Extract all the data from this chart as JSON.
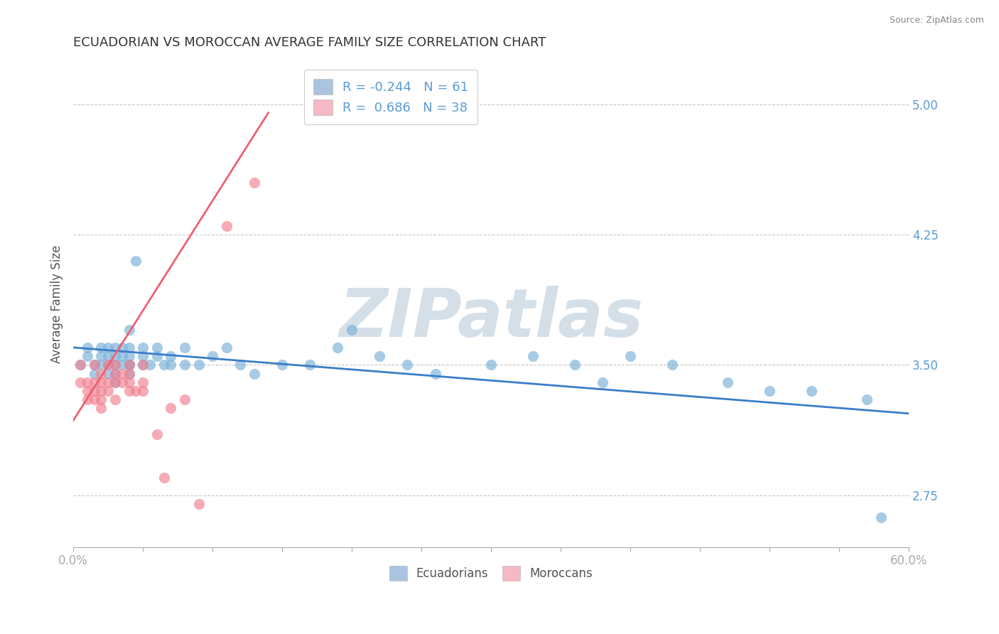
{
  "title": "ECUADORIAN VS MOROCCAN AVERAGE FAMILY SIZE CORRELATION CHART",
  "source_text": "Source: ZipAtlas.com",
  "ylabel": "Average Family Size",
  "right_yticks": [
    2.75,
    3.5,
    4.25,
    5.0
  ],
  "xlim": [
    0.0,
    0.6
  ],
  "ylim": [
    2.45,
    5.25
  ],
  "xtick_positions": [
    0.0,
    0.05,
    0.1,
    0.15,
    0.2,
    0.25,
    0.3,
    0.35,
    0.4,
    0.45,
    0.5,
    0.55,
    0.6
  ],
  "xtick_labels_sparse": {
    "0": "0.0%",
    "12": "60.0%"
  },
  "legend_entries": [
    {
      "label": "R = -0.244   N = 61",
      "color": "#aac4e0"
    },
    {
      "label": "R =  0.686   N = 38",
      "color": "#f5b8c4"
    }
  ],
  "bottom_legend": [
    {
      "label": "Ecuadorians",
      "color": "#7ab0d8"
    },
    {
      "label": "Moroccans",
      "color": "#f08090"
    }
  ],
  "blue_scatter_x": [
    0.005,
    0.01,
    0.01,
    0.015,
    0.015,
    0.02,
    0.02,
    0.02,
    0.025,
    0.025,
    0.025,
    0.025,
    0.03,
    0.03,
    0.03,
    0.03,
    0.03,
    0.035,
    0.035,
    0.035,
    0.04,
    0.04,
    0.04,
    0.04,
    0.04,
    0.04,
    0.045,
    0.05,
    0.05,
    0.05,
    0.055,
    0.06,
    0.06,
    0.065,
    0.07,
    0.07,
    0.08,
    0.08,
    0.09,
    0.1,
    0.11,
    0.12,
    0.13,
    0.15,
    0.17,
    0.19,
    0.2,
    0.22,
    0.24,
    0.26,
    0.3,
    0.33,
    0.36,
    0.38,
    0.4,
    0.43,
    0.47,
    0.5,
    0.53,
    0.57,
    0.58
  ],
  "blue_scatter_y": [
    3.5,
    3.55,
    3.6,
    3.5,
    3.45,
    3.55,
    3.6,
    3.5,
    3.5,
    3.55,
    3.45,
    3.6,
    3.5,
    3.55,
    3.45,
    3.4,
    3.6,
    3.5,
    3.55,
    3.6,
    3.5,
    3.55,
    3.45,
    3.6,
    3.7,
    3.5,
    4.1,
    3.5,
    3.55,
    3.6,
    3.5,
    3.55,
    3.6,
    3.5,
    3.5,
    3.55,
    3.5,
    3.6,
    3.5,
    3.55,
    3.6,
    3.5,
    3.45,
    3.5,
    3.5,
    3.6,
    3.7,
    3.55,
    3.5,
    3.45,
    3.5,
    3.55,
    3.5,
    3.4,
    3.55,
    3.5,
    3.4,
    3.35,
    3.35,
    3.3,
    2.62
  ],
  "pink_scatter_x": [
    0.005,
    0.005,
    0.01,
    0.01,
    0.01,
    0.015,
    0.015,
    0.015,
    0.015,
    0.02,
    0.02,
    0.02,
    0.02,
    0.02,
    0.025,
    0.025,
    0.025,
    0.03,
    0.03,
    0.03,
    0.03,
    0.035,
    0.035,
    0.04,
    0.04,
    0.04,
    0.04,
    0.045,
    0.05,
    0.05,
    0.05,
    0.06,
    0.065,
    0.07,
    0.08,
    0.09,
    0.11,
    0.13
  ],
  "pink_scatter_y": [
    3.4,
    3.5,
    3.4,
    3.35,
    3.3,
    3.4,
    3.35,
    3.3,
    3.5,
    3.4,
    3.35,
    3.3,
    3.45,
    3.25,
    3.4,
    3.35,
    3.5,
    3.4,
    3.3,
    3.45,
    3.5,
    3.4,
    3.45,
    3.35,
    3.4,
    3.5,
    3.45,
    3.35,
    3.4,
    3.35,
    3.5,
    3.1,
    2.85,
    3.25,
    3.3,
    2.7,
    4.3,
    4.55
  ],
  "blue_line_x": [
    0.0,
    0.6
  ],
  "blue_line_y": [
    3.6,
    3.22
  ],
  "pink_line_x": [
    0.0,
    0.14
  ],
  "pink_line_y": [
    3.18,
    4.95
  ],
  "title_color": "#333333",
  "title_fontsize": 13,
  "axis_color": "#5b9bd5",
  "grid_color": "#c8c8c8",
  "watermark_text": "ZIPatlas",
  "watermark_color": "#d4dfe8",
  "background_color": "#ffffff"
}
